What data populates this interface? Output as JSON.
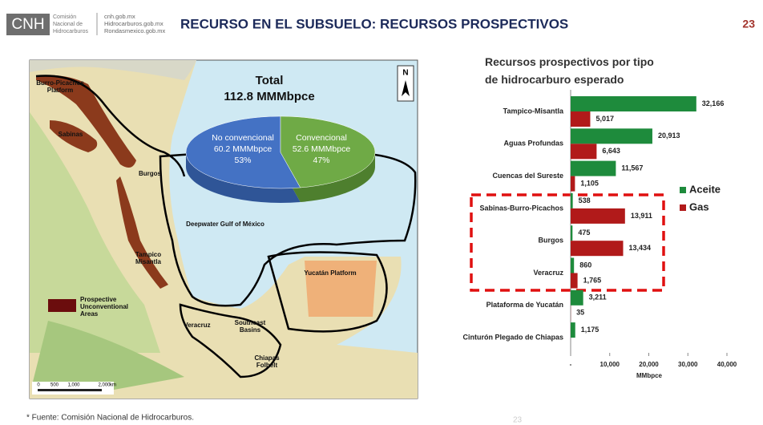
{
  "header": {
    "logo": "CNH",
    "org": [
      "Comisión",
      "Nacional de",
      "Hidrocarburos"
    ],
    "links": [
      "cnh.gob.mx",
      "Hidrocarburos.gob.mx",
      "Rondasmexico.gob.mx"
    ],
    "title": "RECURSO EN EL SUBSUELO: RECURSOS PROSPECTIVOS",
    "page": "23"
  },
  "map": {
    "north": "N",
    "labels": [
      [
        "Burro-Picachos",
        "Platform"
      ],
      [
        "Sabinas"
      ],
      [
        "Burgos"
      ],
      [
        "Tampico",
        "Misantla"
      ],
      [
        "Deepwater Gulf of México"
      ],
      [
        "Yucatán Platform"
      ],
      [
        "Veracruz"
      ],
      [
        "Southeast",
        "Basins"
      ],
      [
        "Chiapas",
        "Folbelt"
      ],
      [
        "Prospective",
        "Unconventional",
        "Areas"
      ]
    ],
    "scale": [
      "0",
      "500",
      "1,000",
      "2,000",
      "km"
    ]
  },
  "chart_data": [
    {
      "type": "pie",
      "title": "Total",
      "subtitle": "112.8 MMMbpce",
      "categories": [
        "No convencional",
        "Convencional"
      ],
      "values": [
        60.2,
        52.6
      ],
      "value_labels": [
        "60.2 MMMbpce",
        "52.6 MMMbpce"
      ],
      "share_labels": [
        "53%",
        "47%"
      ],
      "colors": [
        "#4472c4",
        "#6faa46"
      ]
    },
    {
      "type": "bar",
      "orientation": "horizontal",
      "title": "Recursos prospectivos por tipo de hidrocarburo esperado",
      "categories": [
        "Tampico-Misantla",
        "Aguas Profundas",
        "Cuencas del Sureste",
        "Sabinas-Burro-Picachos",
        "Burgos",
        "Veracruz",
        "Plataforma de Yucatán",
        "Cinturón Plegado de Chiapas"
      ],
      "series": [
        {
          "name": "Aceite",
          "color": "#1e8b3c",
          "values": [
            32166,
            20913,
            11567,
            538,
            475,
            860,
            3211,
            1175
          ],
          "value_labels": [
            "32,166",
            "20,913",
            "11,567",
            "538",
            "475",
            "860",
            "3,211",
            "1,175"
          ]
        },
        {
          "name": "Gas",
          "color": "#b11a1a",
          "values": [
            5017,
            6643,
            1105,
            13911,
            13434,
            1765,
            35,
            null
          ],
          "value_labels": [
            "5,017",
            "6,643",
            "1,105",
            "13,911",
            "13,434",
            "1,765",
            "35",
            null
          ]
        }
      ],
      "xlim": [
        0,
        40000
      ],
      "xticks": [
        {
          "value": 0,
          "label": "-"
        },
        {
          "value": 10000,
          "label": "10,000"
        },
        {
          "value": 20000,
          "label": "20,000"
        },
        {
          "value": 30000,
          "label": "30,000"
        },
        {
          "value": 40000,
          "label": "40,000"
        }
      ],
      "xlabel": "MMbpce",
      "legend": "right"
    }
  ],
  "footer": {
    "source": "* Fuente: Comisión Nacional de Hidrocarburos.",
    "page": "23"
  }
}
